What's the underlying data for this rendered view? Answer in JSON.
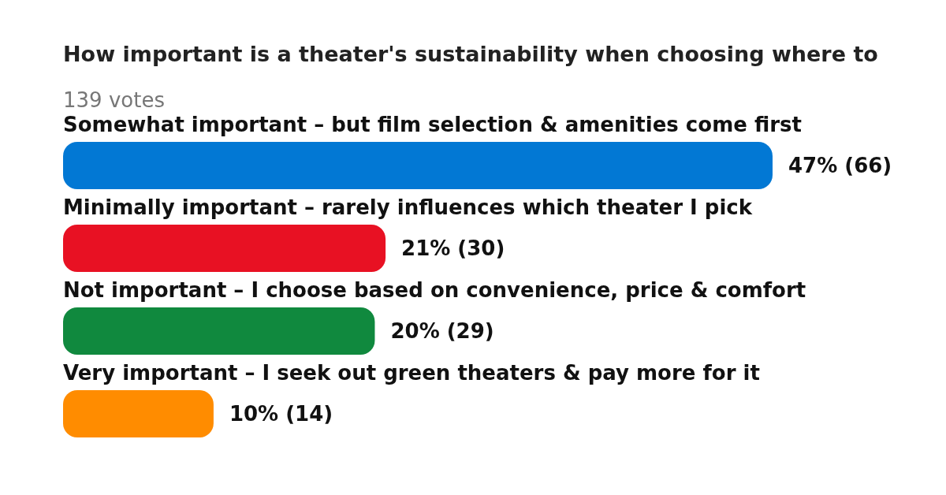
{
  "chart_data": {
    "type": "bar",
    "orientation": "horizontal",
    "title": "How important is a theater's sustainability when choosing where to",
    "subtitle": "139 votes",
    "categories": [
      "Somewhat important – but film selection & amenities come first",
      "Minimally important – rarely influences which theater I pick",
      "Not important – I choose based on convenience, price & comfort",
      "Very important – I seek out green theaters & pay more for it"
    ],
    "values": [
      66,
      30,
      29,
      14
    ],
    "colors": [
      "#0278d4",
      "#e81123",
      "#10893e",
      "#ff8c00"
    ],
    "value_labels": [
      "47% (66)",
      "21% (30)",
      "20% (29)",
      "10% (14)"
    ]
  }
}
